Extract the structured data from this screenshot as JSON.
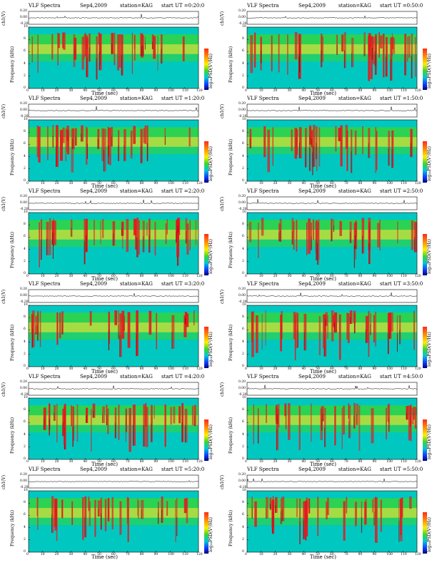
{
  "colors": {
    "background": "#00c8c0",
    "band_low": "#3bd62e",
    "band_high": "#ffe600",
    "burst": "#e8141e",
    "line_trace": "#000000"
  },
  "labels": {
    "title": "VLF Spectra",
    "date": "Sep4,2009",
    "station": "station=KAG",
    "ch_axis": "ch1(V)",
    "freq_axis": "Frequency (kHz)",
    "time_axis": "Time (sec)",
    "colorbar": "log₁₀PSD(V²/Hz)"
  },
  "chart_data": [
    {
      "type": "heatmap",
      "start_ut": "start UT =0:20:0",
      "xlabel": "Time (sec)",
      "ylabel": "Frequency (kHz)",
      "xlim": [
        0,
        120
      ],
      "ylim": [
        0,
        10
      ],
      "x_ticks": [
        0,
        10,
        20,
        30,
        40,
        50,
        60,
        70,
        80,
        90,
        100,
        110,
        120
      ],
      "y_ticks": [
        0,
        2,
        4,
        6,
        8,
        10
      ],
      "line_ticks": [
        "0.20",
        "0.00",
        "-0.20"
      ]
    },
    {
      "type": "heatmap",
      "start_ut": "start UT =0:50:0",
      "xlabel": "Time (sec)",
      "ylabel": "Frequency (kHz)",
      "xlim": [
        0,
        120
      ],
      "ylim": [
        0,
        10
      ],
      "x_ticks": [
        0,
        10,
        20,
        30,
        40,
        50,
        60,
        70,
        80,
        90,
        100,
        110,
        120
      ],
      "y_ticks": [
        0,
        2,
        4,
        6,
        8,
        10
      ],
      "line_ticks": [
        "0.20",
        "0.00",
        "-0.20"
      ]
    },
    {
      "type": "heatmap",
      "start_ut": "start UT =1:20:0",
      "xlabel": "Time (sec)",
      "ylabel": "Frequency (kHz)",
      "xlim": [
        0,
        120
      ],
      "ylim": [
        0,
        10
      ],
      "x_ticks": [
        0,
        10,
        20,
        30,
        40,
        50,
        60,
        70,
        80,
        90,
        100,
        110,
        120
      ],
      "y_ticks": [
        0,
        2,
        4,
        6,
        8,
        10
      ],
      "line_ticks": [
        "0.20",
        "0.00",
        "-0.20"
      ]
    },
    {
      "type": "heatmap",
      "start_ut": "start UT =1:50:0",
      "xlabel": "Time (sec)",
      "ylabel": "Frequency (kHz)",
      "xlim": [
        0,
        120
      ],
      "ylim": [
        0,
        10
      ],
      "x_ticks": [
        0,
        10,
        20,
        30,
        40,
        50,
        60,
        70,
        80,
        90,
        100,
        110,
        120
      ],
      "y_ticks": [
        0,
        2,
        4,
        6,
        8,
        10
      ],
      "line_ticks": [
        "0.20",
        "0.00",
        "-0.20"
      ]
    },
    {
      "type": "heatmap",
      "start_ut": "start UT =2:20:0",
      "xlabel": "Time (sec)",
      "ylabel": "Frequency (kHz)",
      "xlim": [
        0,
        120
      ],
      "ylim": [
        0,
        10
      ],
      "x_ticks": [
        0,
        10,
        20,
        30,
        40,
        50,
        60,
        70,
        80,
        90,
        100,
        110,
        120
      ],
      "y_ticks": [
        0,
        2,
        4,
        6,
        8,
        10
      ],
      "line_ticks": [
        "0.20",
        "0.00",
        "-0.20"
      ]
    },
    {
      "type": "heatmap",
      "start_ut": "start UT =2:50:0",
      "xlabel": "Time (sec)",
      "ylabel": "Frequency (kHz)",
      "xlim": [
        0,
        120
      ],
      "ylim": [
        0,
        10
      ],
      "x_ticks": [
        0,
        10,
        20,
        30,
        40,
        50,
        60,
        70,
        80,
        90,
        100,
        110,
        120
      ],
      "y_ticks": [
        0,
        2,
        4,
        6,
        8,
        10
      ],
      "line_ticks": [
        "0.20",
        "0.00",
        "-0.20"
      ]
    },
    {
      "type": "heatmap",
      "start_ut": "start UT =3:20:0",
      "xlabel": "Time (sec)",
      "ylabel": "Frequency (kHz)",
      "xlim": [
        0,
        120
      ],
      "ylim": [
        0,
        10
      ],
      "x_ticks": [
        0,
        10,
        20,
        30,
        40,
        50,
        60,
        70,
        80,
        90,
        100,
        110,
        120
      ],
      "y_ticks": [
        0,
        2,
        4,
        6,
        8,
        10
      ],
      "line_ticks": [
        "0.20",
        "0.00",
        "-0.20"
      ]
    },
    {
      "type": "heatmap",
      "start_ut": "start UT =3:50:0",
      "xlabel": "Time (sec)",
      "ylabel": "Frequency (kHz)",
      "xlim": [
        0,
        120
      ],
      "ylim": [
        0,
        10
      ],
      "x_ticks": [
        0,
        10,
        20,
        30,
        40,
        50,
        60,
        70,
        80,
        90,
        100,
        110,
        120
      ],
      "y_ticks": [
        0,
        2,
        4,
        6,
        8,
        10
      ],
      "line_ticks": [
        "0.20",
        "0.00",
        "-0.20"
      ]
    },
    {
      "type": "heatmap",
      "start_ut": "start UT =4:20:0",
      "xlabel": "Time (sec)",
      "ylabel": "Frequency (kHz)",
      "xlim": [
        0,
        120
      ],
      "ylim": [
        0,
        10
      ],
      "x_ticks": [
        0,
        10,
        20,
        30,
        40,
        50,
        60,
        70,
        80,
        90,
        100,
        110,
        120
      ],
      "y_ticks": [
        0,
        2,
        4,
        6,
        8,
        10
      ],
      "line_ticks": [
        "0.20",
        "0.00",
        "-0.20"
      ]
    },
    {
      "type": "heatmap",
      "start_ut": "start UT =4:50:0",
      "xlabel": "Time (sec)",
      "ylabel": "Frequency (kHz)",
      "xlim": [
        0,
        120
      ],
      "ylim": [
        0,
        10
      ],
      "x_ticks": [
        0,
        10,
        20,
        30,
        40,
        50,
        60,
        70,
        80,
        90,
        100,
        110,
        120
      ],
      "y_ticks": [
        0,
        2,
        4,
        6,
        8,
        10
      ],
      "line_ticks": [
        "0.20",
        "0.00",
        "-0.20"
      ]
    },
    {
      "type": "heatmap",
      "start_ut": "start UT =5:20:0",
      "xlabel": "Time (sec)",
      "ylabel": "Frequency (kHz)",
      "xlim": [
        0,
        120
      ],
      "ylim": [
        0,
        10
      ],
      "x_ticks": [
        0,
        10,
        20,
        30,
        40,
        50,
        60,
        70,
        80,
        90,
        100,
        110,
        120
      ],
      "y_ticks": [
        0,
        2,
        4,
        6,
        8,
        10
      ],
      "line_ticks": [
        "0.20",
        "0.00",
        "-0.20"
      ]
    },
    {
      "type": "heatmap",
      "start_ut": "start UT =5:50:0",
      "xlabel": "Time (sec)",
      "ylabel": "Frequency (kHz)",
      "xlim": [
        0,
        120
      ],
      "ylim": [
        0,
        10
      ],
      "x_ticks": [
        0,
        10,
        20,
        30,
        40,
        50,
        60,
        70,
        80,
        90,
        100,
        110,
        120
      ],
      "y_ticks": [
        0,
        2,
        4,
        6,
        8,
        10
      ],
      "line_ticks": [
        "0.20",
        "0.00",
        "-0.20"
      ]
    }
  ]
}
